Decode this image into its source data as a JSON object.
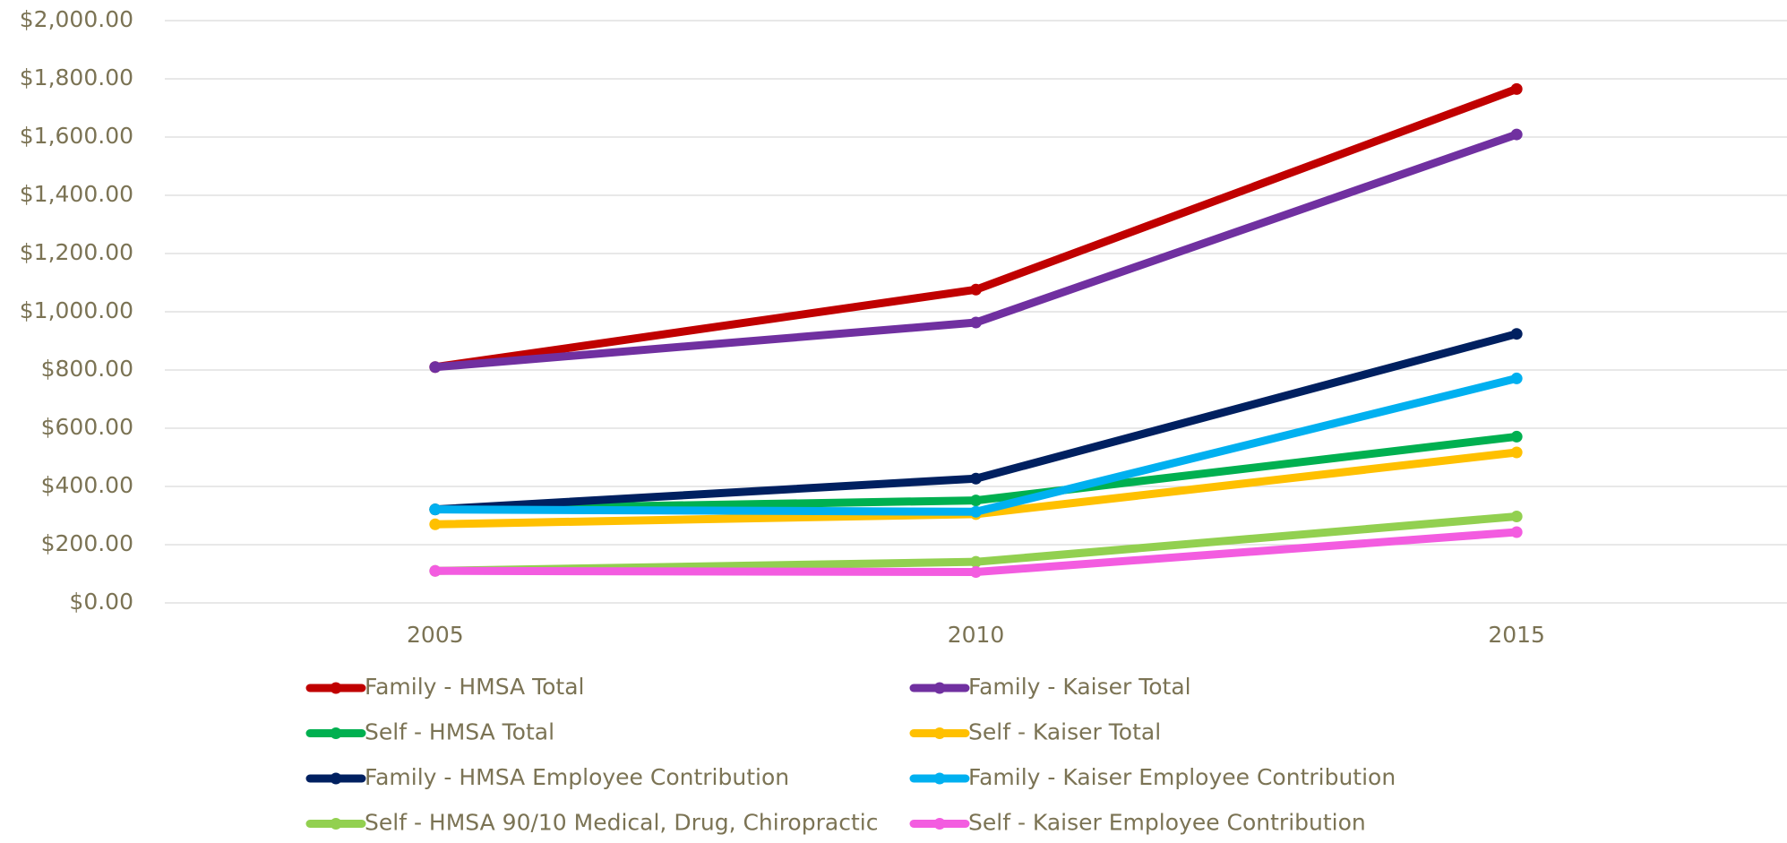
{
  "chart_data": {
    "type": "line",
    "categories": [
      "2005",
      "2010",
      "2015"
    ],
    "series": [
      {
        "name": "Family - HMSA Total",
        "color": "#c00000",
        "values": [
          810,
          1076,
          1765
        ]
      },
      {
        "name": "Family - Kaiser Total",
        "color": "#7030a0",
        "values": [
          810,
          963,
          1609
        ]
      },
      {
        "name": "Self - HMSA Total",
        "color": "#00b050",
        "values": [
          321,
          352,
          571
        ]
      },
      {
        "name": "Self - Kaiser Total",
        "color": "#ffc000",
        "values": [
          270,
          305,
          517
        ]
      },
      {
        "name": "Family - HMSA Employee Contribution",
        "color": "#002060",
        "values": [
          321,
          427,
          924
        ]
      },
      {
        "name": "Family - Kaiser Employee Contribution",
        "color": "#00b0f0",
        "values": [
          321,
          313,
          771
        ]
      },
      {
        "name": "Self - HMSA 90/10 Medical, Drug, Chiropractic",
        "color": "#92d050",
        "values": [
          110,
          141,
          297
        ]
      },
      {
        "name": "Self - Kaiser Employee Contribution",
        "color": "#f35ce0",
        "values": [
          110,
          106,
          243
        ]
      }
    ],
    "ylim": [
      0,
      2000
    ],
    "yticks": [
      {
        "value": 0,
        "label": "$0.00"
      },
      {
        "value": 200,
        "label": "$200.00"
      },
      {
        "value": 400,
        "label": "$400.00"
      },
      {
        "value": 600,
        "label": "$600.00"
      },
      {
        "value": 800,
        "label": "$800.00"
      },
      {
        "value": 1000,
        "label": "$1,000.00"
      },
      {
        "value": 1200,
        "label": "$1,200.00"
      },
      {
        "value": 1400,
        "label": "$1,400.00"
      },
      {
        "value": 1600,
        "label": "$1,600.00"
      },
      {
        "value": 1800,
        "label": "$1,800.00"
      },
      {
        "value": 2000,
        "label": "$2,000.00"
      }
    ],
    "grid": true,
    "legend": "bottom"
  }
}
